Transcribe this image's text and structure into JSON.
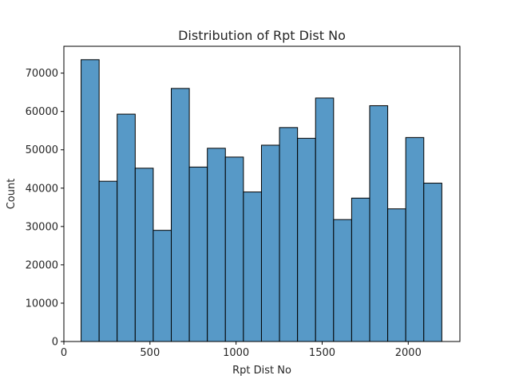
{
  "chart_data": {
    "type": "bar",
    "title": "Distribution of Rpt Dist No",
    "xlabel": "Rpt Dist No",
    "ylabel": "Count",
    "xlim": [
      0,
      2300
    ],
    "ylim": [
      0,
      77000
    ],
    "xticks": [
      0,
      500,
      1000,
      1500,
      2000
    ],
    "yticks": [
      0,
      10000,
      20000,
      30000,
      40000,
      50000,
      60000,
      70000
    ],
    "bin_edges": [
      100,
      204.75,
      309.5,
      414.25,
      519,
      623.75,
      728.5,
      833.25,
      938,
      1042.75,
      1147.5,
      1252.25,
      1357,
      1461.75,
      1566.5,
      1671.25,
      1776,
      1880.75,
      1985.5,
      2090.25,
      2195
    ],
    "values": [
      73500,
      41800,
      59300,
      45200,
      29000,
      66000,
      45500,
      50400,
      48100,
      39000,
      51200,
      55800,
      53000,
      63500,
      31800,
      37400,
      61500,
      34600,
      53200,
      41300
    ],
    "bar_color": "#5799c7",
    "edge_color": "#000000",
    "grid": false
  }
}
